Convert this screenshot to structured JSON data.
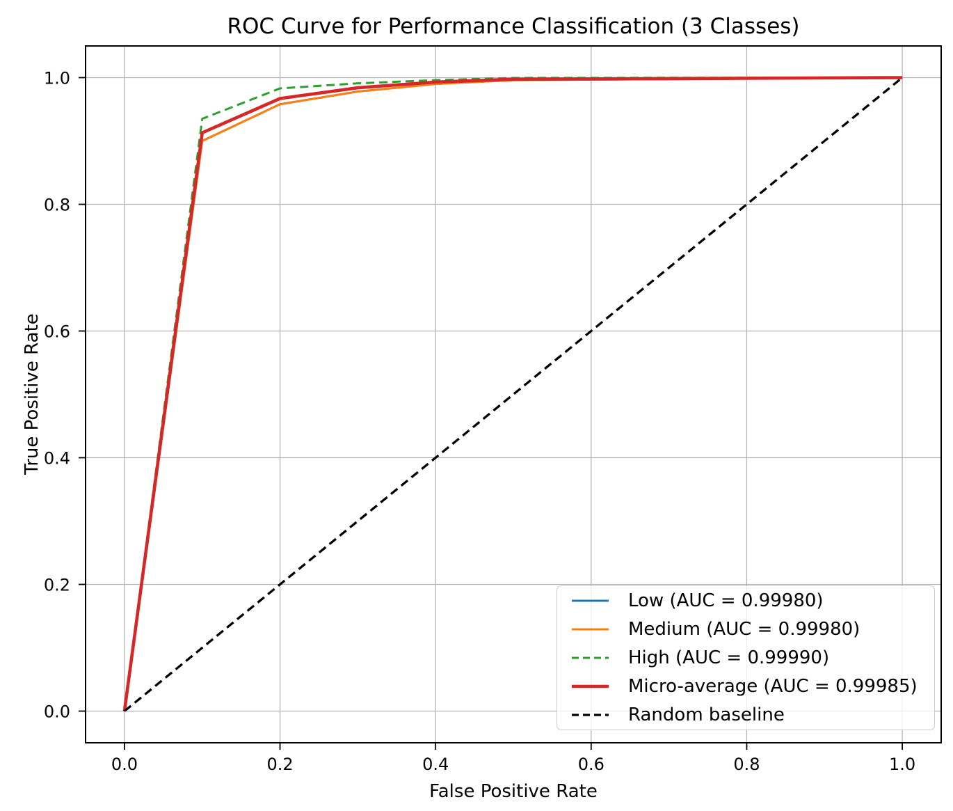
{
  "chart_data": {
    "type": "line",
    "title": "ROC Curve for Performance Classification (3 Classes)",
    "xlabel": "False Positive Rate",
    "ylabel": "True Positive Rate",
    "xlim": [
      -0.05,
      1.05
    ],
    "ylim": [
      -0.05,
      1.05
    ],
    "xticks": [
      0.0,
      0.2,
      0.4,
      0.6,
      0.8,
      1.0
    ],
    "yticks": [
      0.0,
      0.2,
      0.4,
      0.6,
      0.8,
      1.0
    ],
    "grid": true,
    "grid_color": "#b5b5b5",
    "spine_color": "#000000",
    "legend_position": "lower right",
    "series": [
      {
        "id": "low",
        "name": "Low (AUC = 0.99980)",
        "auc": 0.9998,
        "color": "#1f77b4",
        "style": "solid",
        "width": 3,
        "points": [
          [
            0.0,
            0.0
          ],
          [
            0.1,
            0.9
          ],
          [
            0.2,
            0.958
          ],
          [
            0.3,
            0.978
          ],
          [
            0.4,
            0.99
          ],
          [
            0.5,
            0.996
          ],
          [
            1.0,
            1.0
          ]
        ]
      },
      {
        "id": "medium",
        "name": "Medium (AUC = 0.99980)",
        "auc": 0.9998,
        "color": "#ff7f0e",
        "style": "solid",
        "width": 3,
        "points": [
          [
            0.0,
            0.0
          ],
          [
            0.1,
            0.9
          ],
          [
            0.2,
            0.958
          ],
          [
            0.3,
            0.978
          ],
          [
            0.4,
            0.99
          ],
          [
            0.5,
            0.996
          ],
          [
            1.0,
            1.0
          ]
        ]
      },
      {
        "id": "high",
        "name": "High (AUC = 0.99990)",
        "auc": 0.9999,
        "color": "#2ca02c",
        "style": "dashed",
        "width": 3,
        "points": [
          [
            0.0,
            0.0
          ],
          [
            0.1,
            0.935
          ],
          [
            0.2,
            0.983
          ],
          [
            0.3,
            0.991
          ],
          [
            0.4,
            0.996
          ],
          [
            0.5,
            0.9995
          ],
          [
            1.0,
            1.0
          ]
        ]
      },
      {
        "id": "micro-average",
        "name": "Micro-average (AUC = 0.99985)",
        "auc": 0.99985,
        "color": "#d62728",
        "style": "solid",
        "width": 4.6,
        "points": [
          [
            0.0,
            0.0
          ],
          [
            0.1,
            0.913
          ],
          [
            0.2,
            0.967
          ],
          [
            0.3,
            0.984
          ],
          [
            0.4,
            0.993
          ],
          [
            0.5,
            0.9975
          ],
          [
            1.0,
            1.0
          ]
        ]
      },
      {
        "id": "random-baseline",
        "name": "Random baseline",
        "color": "#000000",
        "style": "dashed",
        "width": 3.3,
        "points": [
          [
            0.0,
            0.0
          ],
          [
            1.0,
            1.0
          ]
        ]
      }
    ]
  }
}
